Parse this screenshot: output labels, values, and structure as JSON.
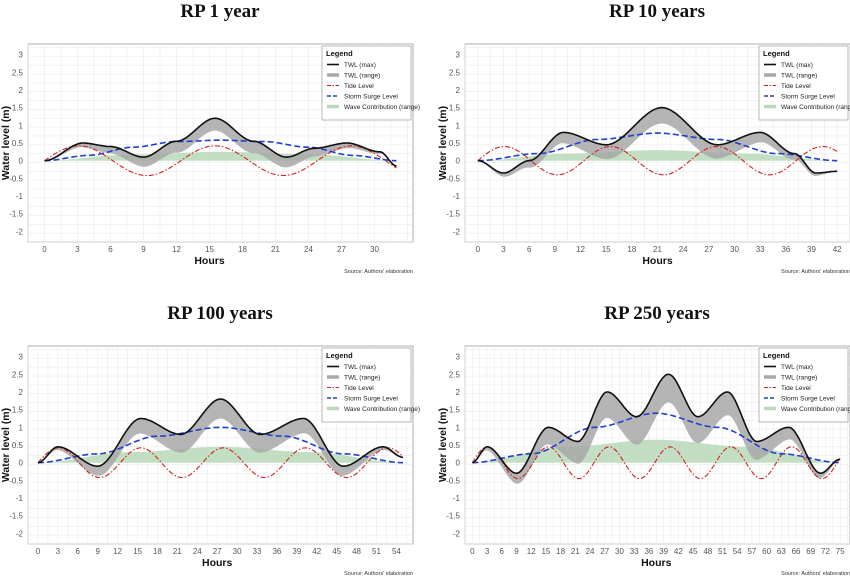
{
  "legend": {
    "title": "Legend",
    "items": [
      "TWL (max)",
      "TWL (range)",
      "Tide Level",
      "Storm Surge Level",
      "Wave Contribution (range)"
    ]
  },
  "xlabel": "Hours",
  "ylabel": "Water level (m)",
  "source": "Source: Authors' elaboration",
  "colors": {
    "twl_max": "#111111",
    "twl_range": "#a8a8a8",
    "tide": "#d42020",
    "surge": "#1f3fcf",
    "wave": "#b9d9b9",
    "grid": "#ebebeb",
    "panel_border": "#777777"
  },
  "chart_data": [
    {
      "type": "line",
      "title": "RP 1 year",
      "xlim": [
        -1.5,
        33.5
      ],
      "ylim": [
        -2.3,
        3.3
      ],
      "xticks": [
        0,
        3,
        6,
        9,
        12,
        15,
        18,
        21,
        24,
        27,
        30
      ],
      "yticks": [
        -2,
        -1.5,
        -1,
        -0.5,
        0,
        0.5,
        1,
        1.5,
        2,
        2.5,
        3
      ],
      "x_end": 32,
      "tide_amplitude": 0.42,
      "tide_period_hours": 12.4,
      "surge_peak": 0.58,
      "wave_max": 0.25,
      "twl_range_width": 0.35,
      "twl_end_value": -0.15,
      "series": [
        {
          "name": "TWL (max)",
          "x": [
            0,
            3.5,
            6,
            9,
            12,
            15.5,
            19,
            22,
            24.5,
            27.5,
            30.5,
            32
          ],
          "values": [
            0,
            0.5,
            0.4,
            0.1,
            0.55,
            1.2,
            0.55,
            0.1,
            0.35,
            0.5,
            0.25,
            -0.15
          ]
        },
        {
          "name": "Storm Surge Level",
          "x": [
            0,
            4,
            8,
            12,
            16,
            20,
            24,
            28,
            32
          ],
          "values": [
            0,
            0.15,
            0.38,
            0.54,
            0.58,
            0.54,
            0.38,
            0.15,
            0
          ]
        },
        {
          "name": "Tide Level",
          "x": [
            0,
            3.1,
            6.2,
            9.3,
            12.4,
            15.5,
            18.6,
            21.7,
            24.8,
            27.9,
            31
          ],
          "values": [
            0,
            0.42,
            0,
            -0.42,
            0,
            0.42,
            0,
            -0.42,
            0,
            0.42,
            0
          ]
        },
        {
          "name": "Wave Contribution (range)",
          "x": [
            0,
            8,
            16,
            24,
            32
          ],
          "values": [
            0,
            0.18,
            0.25,
            0.18,
            0
          ]
        }
      ]
    },
    {
      "type": "line",
      "title": "RP 10 years",
      "xlim": [
        -1.5,
        43.5
      ],
      "ylim": [
        -2.3,
        3.3
      ],
      "xticks": [
        0,
        3,
        6,
        9,
        12,
        15,
        18,
        21,
        24,
        27,
        30,
        33,
        36,
        39,
        42
      ],
      "yticks": [
        -2,
        -1.5,
        -1,
        -0.5,
        0,
        0.5,
        1,
        1.5,
        2,
        2.5,
        3
      ],
      "x_end": 42,
      "tide_amplitude": 0.4,
      "tide_period_hours": 12.4,
      "surge_peak": 0.78,
      "wave_max": 0.3,
      "twl_range_width": 0.45,
      "twl_end_value": -0.3,
      "series": [
        {
          "name": "TWL (max)",
          "x": [
            0,
            3,
            6,
            10,
            15,
            21.5,
            28,
            33,
            37,
            39.5,
            42
          ],
          "values": [
            0,
            -0.35,
            0,
            0.8,
            0.45,
            1.5,
            0.45,
            0.8,
            0.2,
            -0.35,
            -0.3
          ]
        },
        {
          "name": "Storm Surge Level",
          "x": [
            0,
            7,
            14,
            21,
            28,
            35,
            42
          ],
          "values": [
            0,
            0.2,
            0.6,
            0.78,
            0.6,
            0.2,
            0
          ]
        },
        {
          "name": "Tide Level",
          "x": [
            0,
            3.1,
            9.3,
            15.5,
            21.7,
            27.9,
            34.1,
            40.3,
            42
          ],
          "values": [
            0,
            -0.4,
            0.4,
            -0.4,
            0.4,
            -0.4,
            0.4,
            -0.4,
            -0.3
          ]
        },
        {
          "name": "Wave Contribution (range)",
          "x": [
            0,
            10.5,
            21,
            31.5,
            42
          ],
          "values": [
            0,
            0.2,
            0.3,
            0.2,
            0
          ]
        }
      ]
    },
    {
      "type": "line",
      "title": "RP 100 years",
      "xlim": [
        -1.5,
        56.5
      ],
      "ylim": [
        -2.3,
        3.3
      ],
      "xticks": [
        0,
        3,
        6,
        9,
        12,
        15,
        18,
        21,
        24,
        27,
        30,
        33,
        36,
        39,
        42,
        45,
        48,
        51,
        54
      ],
      "yticks": [
        -2,
        -1.5,
        -1,
        -0.5,
        0,
        0.5,
        1,
        1.5,
        2,
        2.5,
        3
      ],
      "x_end": 55,
      "tide_amplitude": 0.42,
      "tide_period_hours": 12.4,
      "surge_peak": 1.0,
      "wave_max": 0.45,
      "twl_range_width": 0.55,
      "twl_end_value": 0.15,
      "series": [
        {
          "name": "TWL (max)",
          "x": [
            0,
            3,
            9,
            15.5,
            21.5,
            27.5,
            33.5,
            40,
            46,
            52,
            55
          ],
          "values": [
            0,
            0.45,
            -0.1,
            1.25,
            0.8,
            1.8,
            0.8,
            1.25,
            -0.1,
            0.45,
            0.15
          ]
        },
        {
          "name": "Storm Surge Level",
          "x": [
            0,
            9,
            18,
            27.5,
            37,
            46,
            55
          ],
          "values": [
            0,
            0.25,
            0.75,
            1.0,
            0.75,
            0.25,
            0
          ]
        },
        {
          "name": "Tide Level",
          "x": [
            0,
            3.1,
            9.3,
            15.5,
            21.7,
            27.9,
            34.1,
            40.3,
            46.5,
            52.7,
            55
          ],
          "values": [
            0,
            0.42,
            -0.42,
            0.42,
            -0.42,
            0.42,
            -0.42,
            0.42,
            -0.42,
            0.42,
            0.15
          ]
        },
        {
          "name": "Wave Contribution (range)",
          "x": [
            0,
            14,
            27.5,
            41,
            55
          ],
          "values": [
            0,
            0.3,
            0.45,
            0.3,
            0
          ]
        }
      ]
    },
    {
      "type": "line",
      "title": "RP 250 years",
      "xlim": [
        -1.5,
        77
      ],
      "ylim": [
        -2.3,
        3.3
      ],
      "xticks": [
        0,
        3,
        6,
        9,
        12,
        15,
        18,
        21,
        24,
        27,
        30,
        33,
        36,
        39,
        42,
        45,
        48,
        51,
        54,
        57,
        60,
        63,
        66,
        69,
        72,
        75
      ],
      "yticks": [
        -2,
        -1.5,
        -1,
        -0.5,
        0,
        0.5,
        1,
        1.5,
        2,
        2.5,
        3
      ],
      "x_end": 75,
      "tide_amplitude": 0.45,
      "tide_period_hours": 12.4,
      "surge_peak": 1.4,
      "wave_max": 0.65,
      "twl_range_width": 0.8,
      "twl_end_value": 0.1,
      "series": [
        {
          "name": "TWL (max)",
          "x": [
            0,
            3,
            9,
            15.5,
            21.5,
            27.5,
            33.5,
            40,
            46,
            52,
            58,
            64.5,
            71,
            75
          ],
          "values": [
            0,
            0.45,
            -0.3,
            1.0,
            0.6,
            2.0,
            1.3,
            2.5,
            1.3,
            2.0,
            0.6,
            1.0,
            -0.3,
            0.1
          ]
        },
        {
          "name": "Storm Surge Level",
          "x": [
            0,
            12,
            25,
            37.5,
            50,
            63,
            75
          ],
          "values": [
            0,
            0.25,
            1.0,
            1.4,
            1.0,
            0.25,
            0
          ]
        },
        {
          "name": "Tide Level",
          "x": [
            0,
            3.1,
            9.3,
            15.5,
            21.7,
            27.9,
            34.1,
            40.3,
            46.5,
            52.7,
            58.9,
            65.1,
            71.3,
            75
          ],
          "values": [
            0,
            0.45,
            -0.45,
            0.45,
            -0.45,
            0.45,
            -0.45,
            0.45,
            -0.45,
            0.45,
            -0.45,
            0.45,
            -0.45,
            0
          ]
        },
        {
          "name": "Wave Contribution (range)",
          "x": [
            0,
            19,
            37.5,
            56,
            75
          ],
          "values": [
            0,
            0.45,
            0.65,
            0.45,
            0
          ]
        }
      ]
    }
  ]
}
